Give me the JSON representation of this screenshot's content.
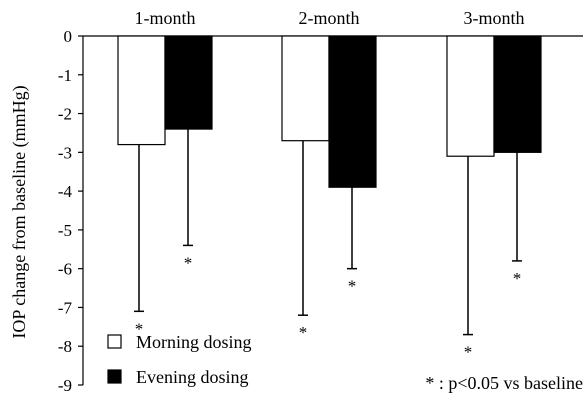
{
  "chart_data": {
    "type": "bar",
    "categories": [
      "1-month",
      "2-month",
      "3-month"
    ],
    "ylabel": "IOP change from baseline (mmHg)",
    "ylim": [
      -9,
      0
    ],
    "yticks": [
      0,
      -1,
      -2,
      -3,
      -4,
      -5,
      -6,
      -7,
      -8,
      -9
    ],
    "grid": false,
    "legend_position": "bottom-left",
    "series": [
      {
        "name": "Morning dosing",
        "fill": "#ffffff",
        "values": [
          -2.8,
          -2.7,
          -3.1
        ],
        "error_low": [
          -7.1,
          -7.2,
          -7.7
        ],
        "significance": [
          "*",
          "*",
          "*"
        ]
      },
      {
        "name": "Evening dosing",
        "fill": "#000000",
        "values": [
          -2.4,
          -3.9,
          -3.0
        ],
        "error_low": [
          -5.4,
          -6.0,
          -5.8
        ],
        "significance": [
          "*",
          "*",
          "*"
        ]
      }
    ],
    "annotation": "* : p<0.05 vs baseline"
  }
}
